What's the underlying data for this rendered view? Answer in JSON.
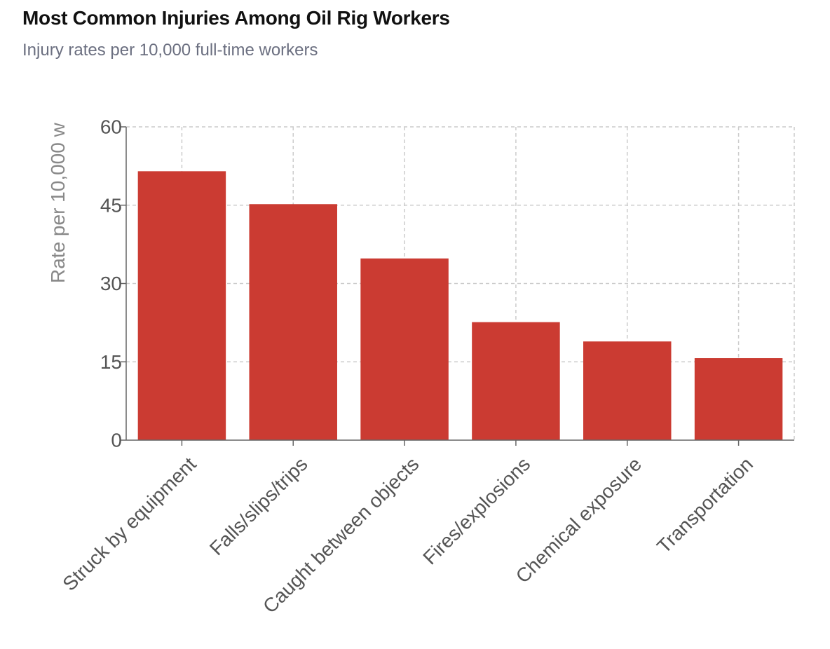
{
  "chart_data": {
    "type": "bar",
    "title": "Most Common Injuries Among Oil Rig Workers",
    "subtitle": "Injury rates per 10,000 full-time workers",
    "xlabel": "",
    "ylabel": "Rate per 10,000 w",
    "categories": [
      "Struck by equipment",
      "Falls/slips/trips",
      "Caught between objects",
      "Fires/explosions",
      "Chemical exposure",
      "Transportation"
    ],
    "values": [
      51.5,
      45.2,
      34.8,
      22.6,
      18.9,
      15.7
    ],
    "ylim": [
      0,
      60
    ],
    "yticks": [
      0,
      15,
      30,
      45,
      60
    ],
    "grid": true,
    "legend": "none",
    "colors": {
      "bar": "#cb3b32",
      "grid": "#cccccc",
      "axis": "#666666"
    }
  }
}
